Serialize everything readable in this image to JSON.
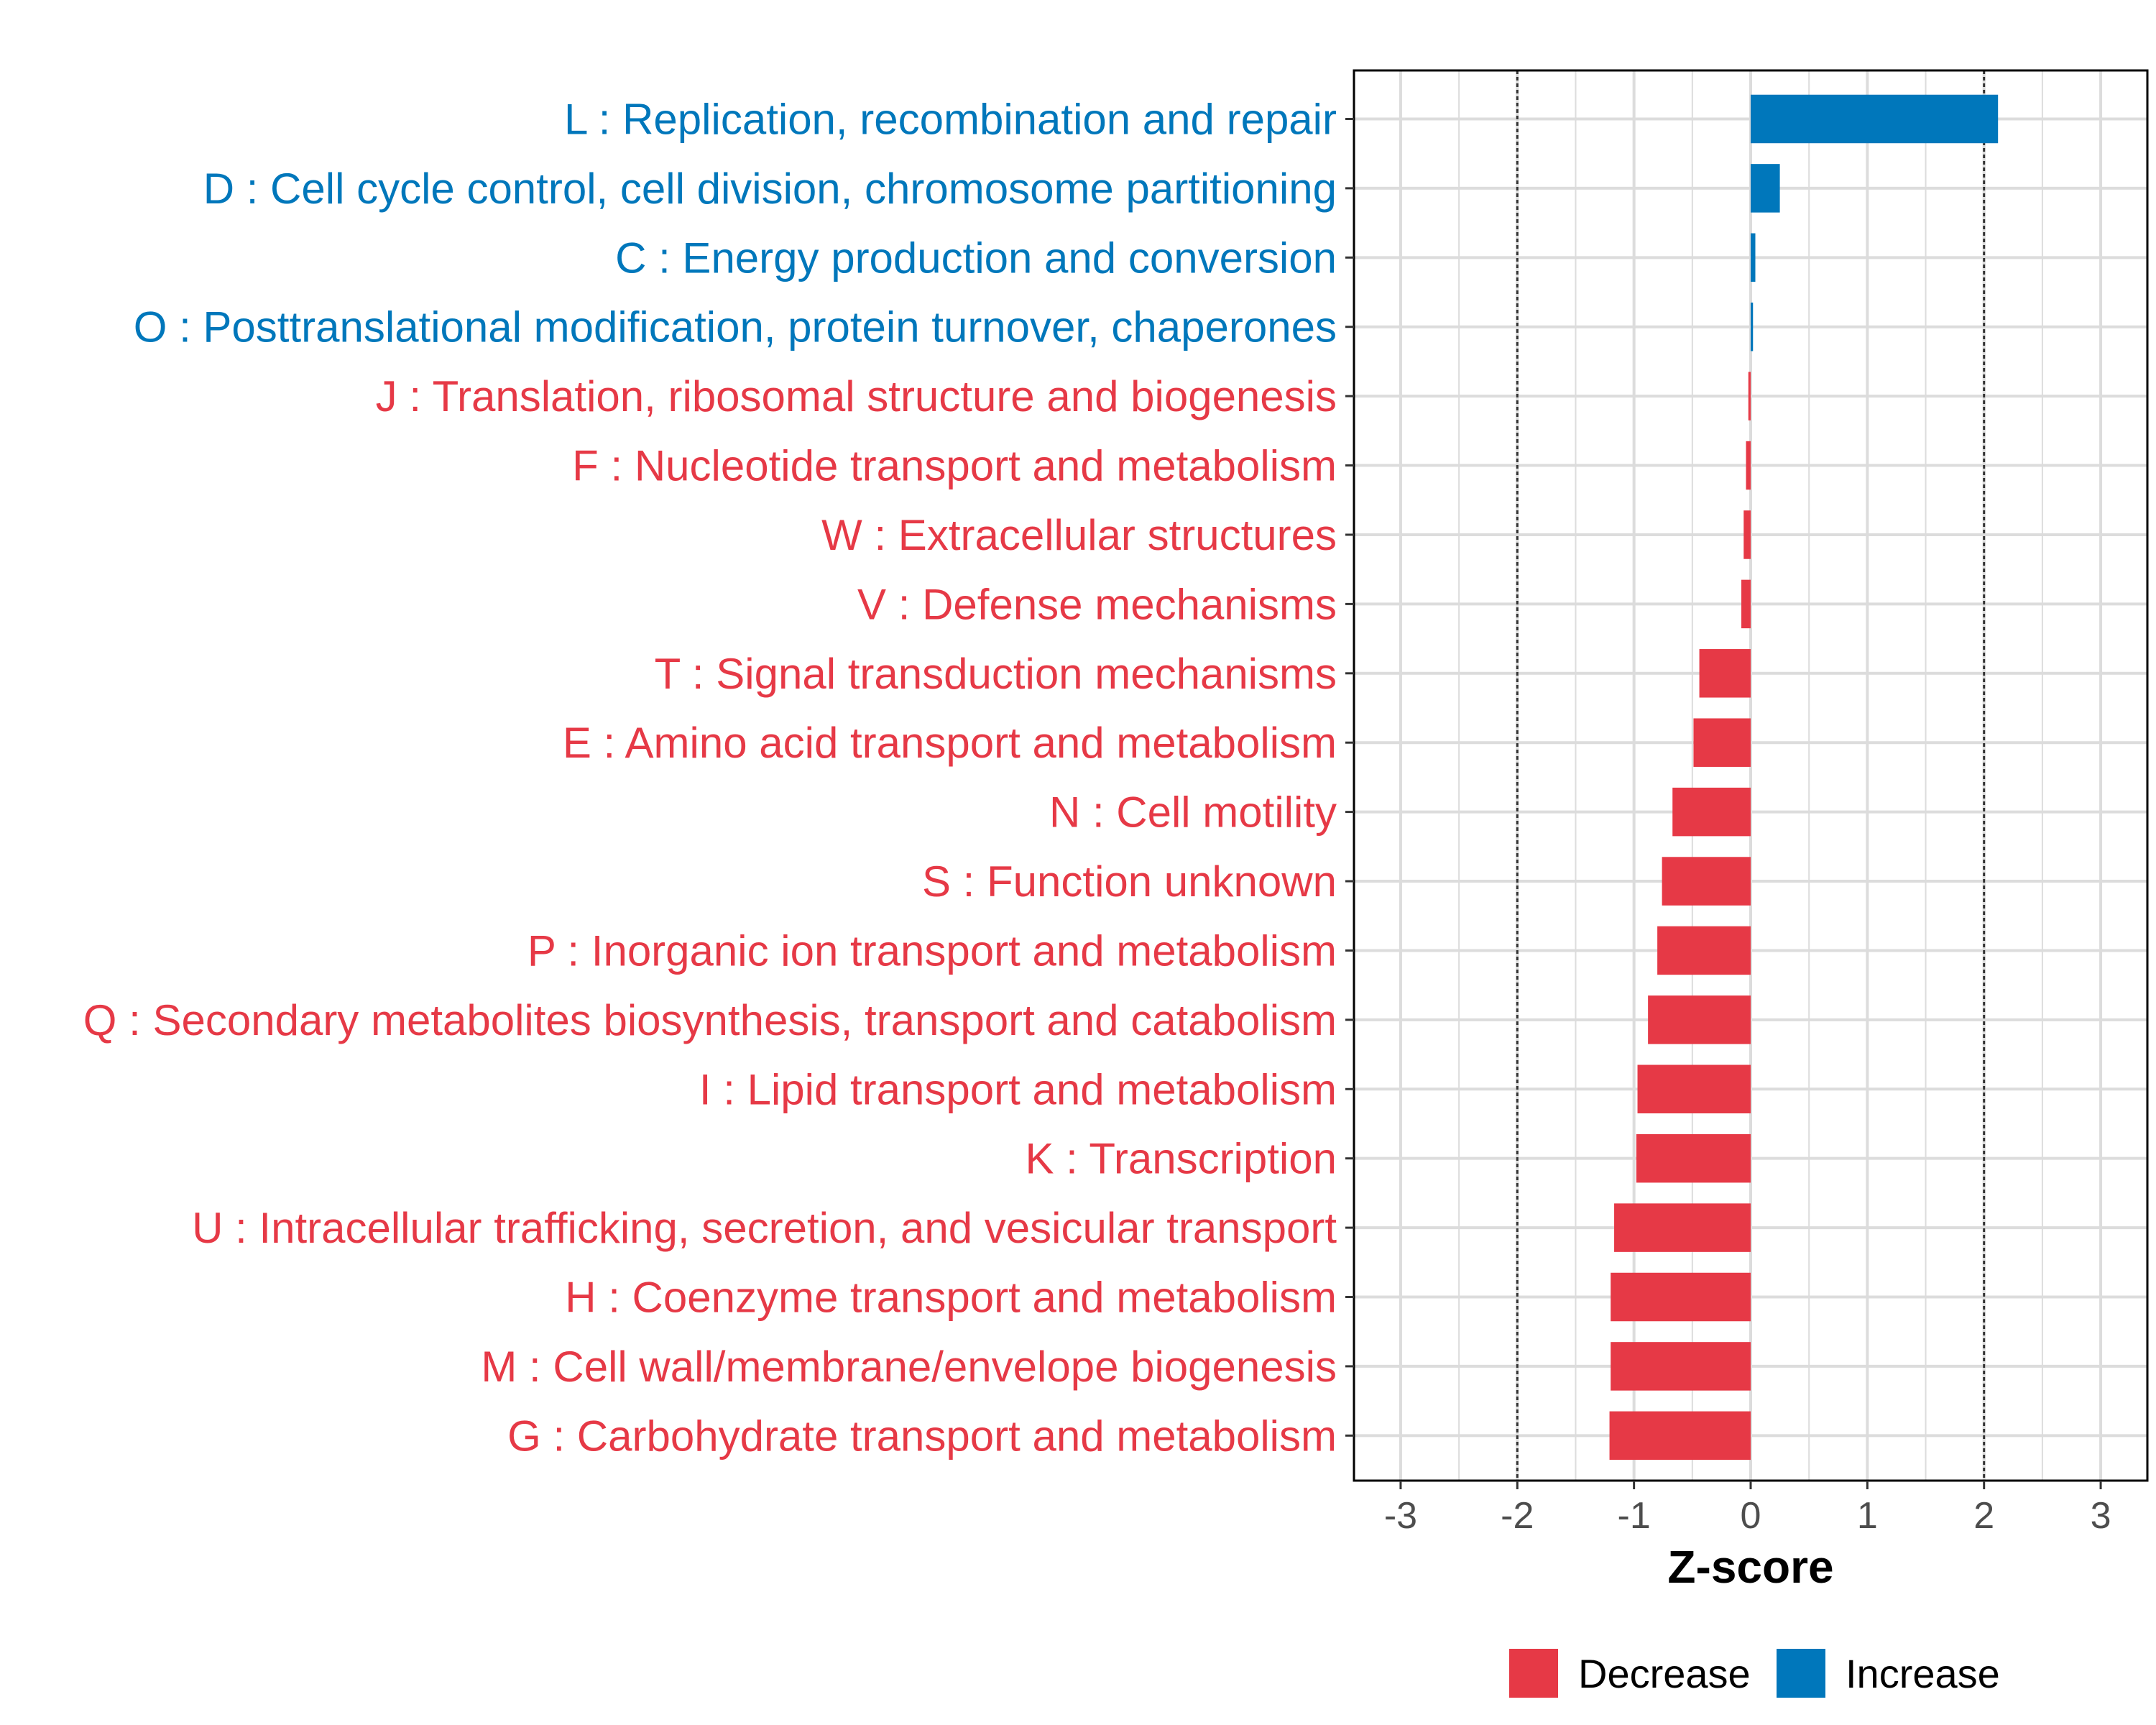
{
  "chart_data": {
    "type": "bar",
    "orientation": "horizontal",
    "xlabel": "Z-score",
    "ylabel": "",
    "xlim": [
      -3.4,
      3.4
    ],
    "xticks": [
      -3,
      -2,
      -1,
      0,
      1,
      2,
      3
    ],
    "reference_lines": [
      -2,
      2
    ],
    "grid": true,
    "legend_position": "bottom",
    "colors": {
      "Decrease": "#e63946",
      "Increase": "#0077bb"
    },
    "legend": [
      {
        "label": "Decrease",
        "color": "#e63946"
      },
      {
        "label": "Increase",
        "color": "#0077bb"
      }
    ],
    "categories": [
      "L : Replication, recombination and repair",
      "D : Cell cycle control, cell division, chromosome partitioning",
      "C : Energy production and conversion",
      "O : Posttranslational modification, protein turnover, chaperones",
      "J : Translation, ribosomal structure and biogenesis",
      "F : Nucleotide transport and metabolism",
      "W : Extracellular structures",
      "V : Defense mechanisms",
      "T : Signal transduction mechanisms",
      "E : Amino acid transport and metabolism",
      "N : Cell motility",
      "S : Function unknown",
      "P : Inorganic ion transport and metabolism",
      "Q : Secondary metabolites biosynthesis, transport and catabolism",
      "I : Lipid transport and metabolism",
      "K : Transcription",
      "U : Intracellular trafficking, secretion, and vesicular transport",
      "H : Coenzyme transport and metabolism",
      "M : Cell wall/membrane/envelope biogenesis",
      "G : Carbohydrate transport and metabolism"
    ],
    "values": [
      2.12,
      0.25,
      0.04,
      0.02,
      -0.02,
      -0.04,
      -0.06,
      -0.08,
      -0.44,
      -0.49,
      -0.67,
      -0.76,
      -0.8,
      -0.88,
      -0.97,
      -0.98,
      -1.17,
      -1.2,
      -1.2,
      -1.21
    ],
    "direction": [
      "Increase",
      "Increase",
      "Increase",
      "Increase",
      "Decrease",
      "Decrease",
      "Decrease",
      "Decrease",
      "Decrease",
      "Decrease",
      "Decrease",
      "Decrease",
      "Decrease",
      "Decrease",
      "Decrease",
      "Decrease",
      "Decrease",
      "Decrease",
      "Decrease",
      "Decrease"
    ]
  }
}
